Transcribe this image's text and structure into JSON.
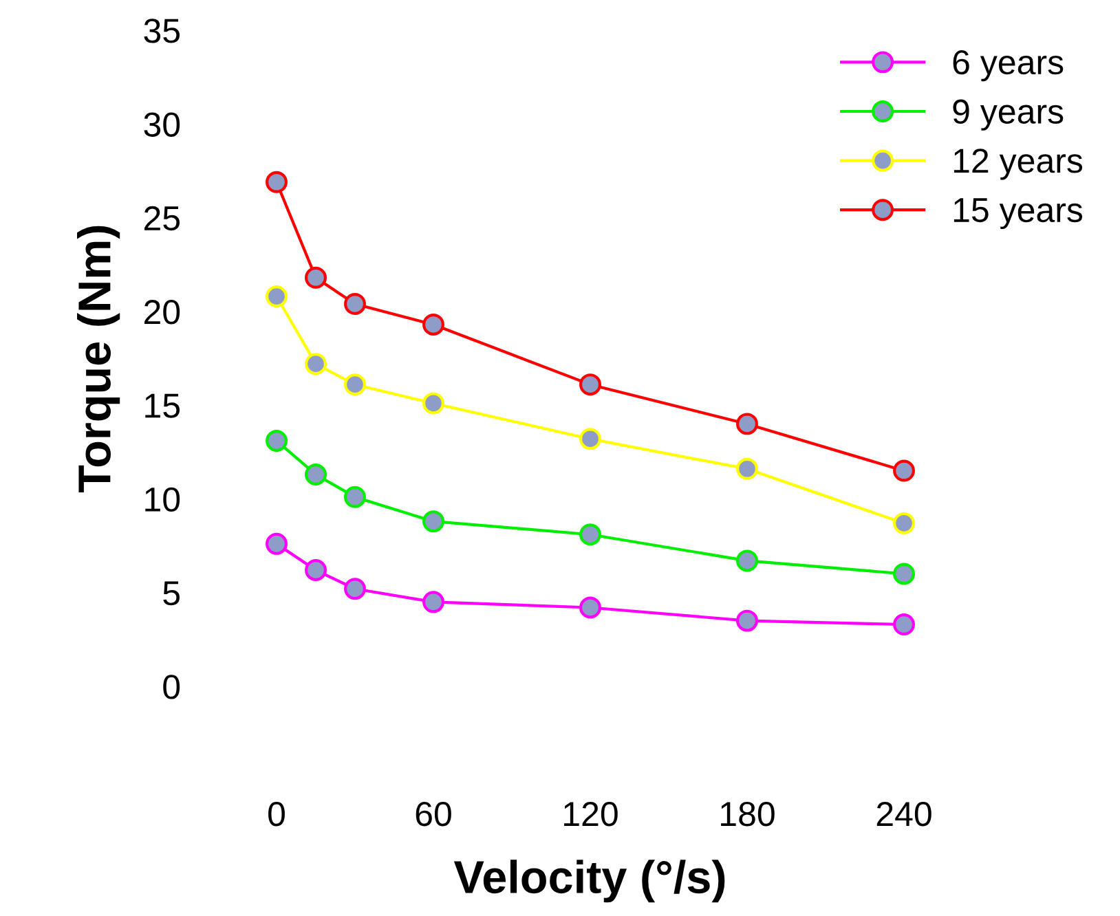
{
  "chart_data": {
    "type": "line",
    "xlabel": "Velocity (°/s)",
    "ylabel": "Torque (Nm)",
    "x": [
      0,
      15,
      30,
      60,
      120,
      180,
      240
    ],
    "series": [
      {
        "name": "6 years",
        "color": "#ff00ff",
        "values": [
          7.6,
          6.2,
          5.2,
          4.5,
          4.2,
          3.5,
          3.3
        ]
      },
      {
        "name": "9 years",
        "color": "#00ee00",
        "values": [
          13.1,
          11.3,
          10.1,
          8.8,
          8.1,
          6.7,
          6.0
        ]
      },
      {
        "name": "12 years",
        "color": "#ffff00",
        "values": [
          20.8,
          17.2,
          16.1,
          15.1,
          13.2,
          11.6,
          8.7
        ]
      },
      {
        "name": "15 years",
        "color": "#ff0000",
        "values": [
          26.9,
          21.8,
          20.4,
          19.3,
          16.1,
          14.0,
          11.5
        ]
      }
    ],
    "xlim": [
      0,
      240
    ],
    "xticks": [
      0,
      60,
      120,
      180,
      240
    ],
    "ylim": [
      0,
      35
    ],
    "yticks": [
      0,
      5,
      10,
      15,
      20,
      25,
      30,
      35
    ],
    "grid": false,
    "legend": "top right",
    "marker": "circle",
    "line_style": "solid"
  }
}
